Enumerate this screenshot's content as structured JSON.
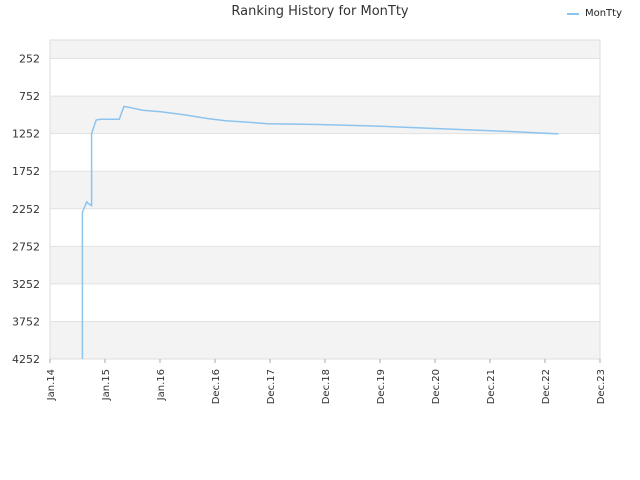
{
  "chart_data": {
    "type": "line",
    "title": "Ranking History for MonTty",
    "xlabel": "",
    "ylabel": "",
    "y_inverted": true,
    "ylim": [
      4252,
      5
    ],
    "yticks": [
      252,
      752,
      1252,
      1752,
      2252,
      2752,
      3252,
      3752,
      4252
    ],
    "xticks": [
      "Jan.14",
      "Jan.15",
      "Jan.16",
      "Dec.16",
      "Dec.17",
      "Dec.18",
      "Dec.19",
      "Dec.20",
      "Dec.21",
      "Dec.22",
      "Dec.23"
    ],
    "grid": true,
    "legend_position": "top-right",
    "colors": {
      "series": "#8cc4f0",
      "band": "#f3f3f3",
      "grid": "#e2e2e2"
    },
    "series": [
      {
        "name": "MonTty",
        "points": [
          [
            "2014-08",
            4252
          ],
          [
            "2014-08",
            3750
          ],
          [
            "2014-08",
            2300
          ],
          [
            "2014-09",
            2150
          ],
          [
            "2014-09",
            2170
          ],
          [
            "2014-10",
            2210
          ],
          [
            "2014-10",
            1250
          ],
          [
            "2014-11",
            1070
          ],
          [
            "2014-12",
            1060
          ],
          [
            "2015-01",
            1060
          ],
          [
            "2015-04",
            1060
          ],
          [
            "2015-05",
            890
          ],
          [
            "2015-06",
            900
          ],
          [
            "2015-09",
            940
          ],
          [
            "2016-01",
            960
          ],
          [
            "2016-06",
            1000
          ],
          [
            "2016-11",
            1050
          ],
          [
            "2017-03",
            1080
          ],
          [
            "2017-08",
            1100
          ],
          [
            "2017-12",
            1120
          ],
          [
            "2018-06",
            1125
          ],
          [
            "2018-11",
            1130
          ],
          [
            "2019-05",
            1140
          ],
          [
            "2019-11",
            1150
          ],
          [
            "2020-05",
            1165
          ],
          [
            "2020-11",
            1180
          ],
          [
            "2021-05",
            1195
          ],
          [
            "2021-11",
            1210
          ],
          [
            "2022-05",
            1225
          ],
          [
            "2022-10",
            1240
          ],
          [
            "2023-03",
            1255
          ]
        ]
      }
    ]
  }
}
